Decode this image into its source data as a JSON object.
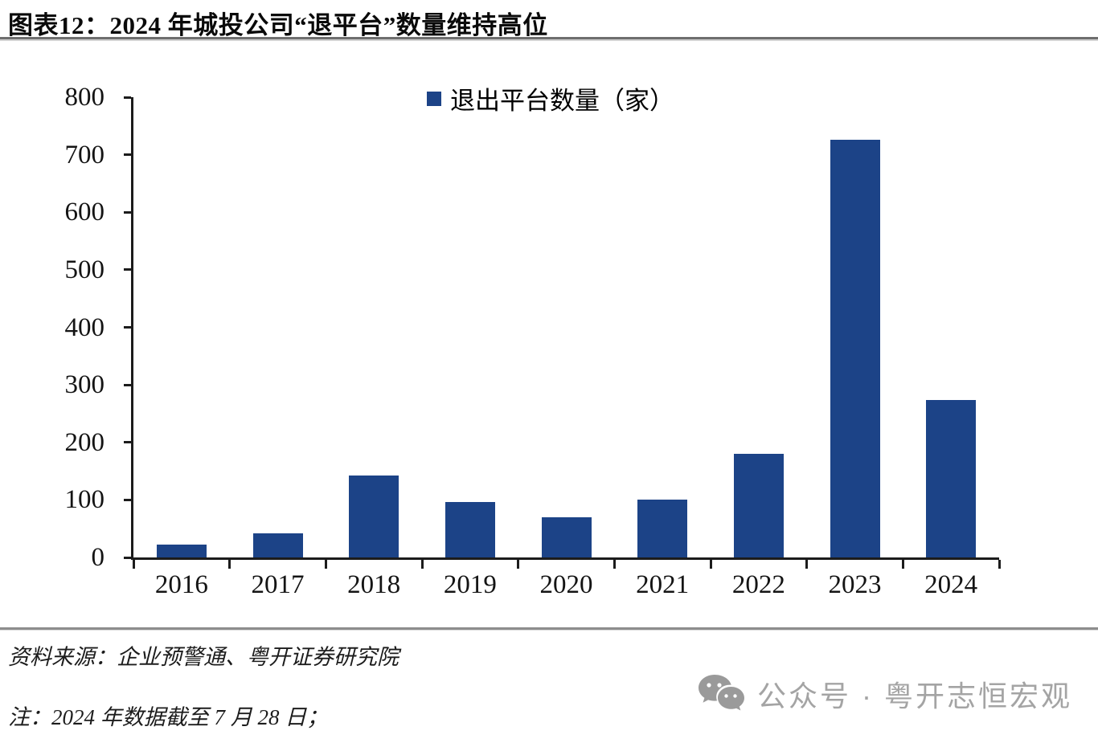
{
  "page": {
    "title": "图表12：2024 年城投公司“退平台”数量维持高位",
    "source_line": "资料来源：企业预警通、粤开证券研究院",
    "note_line": "注：2024 年数据截至 7 月 28 日；",
    "watermark_text": "公众号 · 粤开志恒宏观"
  },
  "chart_data": {
    "type": "bar",
    "title": "2024 年城投公司“退平台”数量维持高位",
    "legend": [
      "退出平台数量（家）"
    ],
    "legend_position": "top",
    "categories": [
      "2016",
      "2017",
      "2018",
      "2019",
      "2020",
      "2021",
      "2022",
      "2023",
      "2024"
    ],
    "values": [
      22,
      42,
      143,
      96,
      70,
      101,
      180,
      726,
      274
    ],
    "xlabel": "",
    "ylabel": "",
    "ylim": [
      0,
      800
    ],
    "ytick_interval": 100,
    "grid": false,
    "bar_color": "#1c4387",
    "axis_color": "#1c1c1c"
  }
}
